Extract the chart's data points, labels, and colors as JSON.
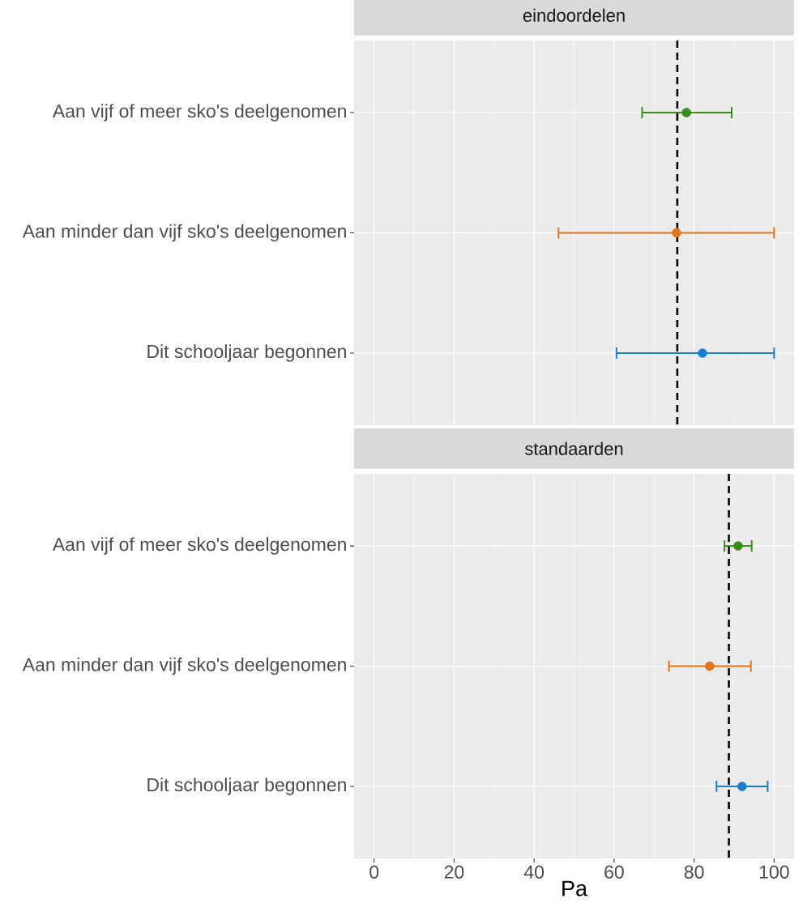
{
  "chart_data": [
    {
      "type": "scatter",
      "title": "eindoordelen",
      "orientation": "horizontal",
      "categories": [
        "Aan vijf of meer sko's deelgenomen",
        "Aan minder dan vijf sko's deelgenomen",
        "Dit schooljaar begonnen"
      ],
      "values": [
        78.1,
        75.6,
        82.1
      ],
      "errors": [
        [
          67.0,
          89.4
        ],
        [
          46.1,
          100
        ],
        [
          60.6,
          100
        ]
      ],
      "colors": [
        "#3a8c1e",
        "#e5751a",
        "#1a7fcf"
      ],
      "xlim": [
        -5,
        105
      ],
      "xticks": [
        0,
        20,
        40,
        60,
        80,
        100
      ],
      "tick_labels": "y",
      "grid": true,
      "marker": "circle",
      "ref_lines": [
        {
          "axis": "x",
          "value": 75.8,
          "color": "#000000",
          "line_style": "dashed"
        }
      ]
    },
    {
      "type": "scatter",
      "title": "standaarden",
      "orientation": "horizontal",
      "xlabel": "Pa",
      "categories": [
        "Aan vijf of meer sko's deelgenomen",
        "Aan minder dan vijf sko's deelgenomen",
        "Dit schooljaar begonnen"
      ],
      "values": [
        91.0,
        83.9,
        92.0
      ],
      "errors": [
        [
          87.6,
          94.4
        ],
        [
          73.7,
          94.2
        ],
        [
          85.6,
          98.4
        ]
      ],
      "colors": [
        "#3a8c1e",
        "#e5751a",
        "#1a7fcf"
      ],
      "xlim": [
        -5,
        105
      ],
      "xticks": [
        0,
        20,
        40,
        60,
        80,
        100
      ],
      "grid": true,
      "marker": "circle",
      "ref_lines": [
        {
          "axis": "x",
          "value": 88.7,
          "color": "#000000",
          "line_style": "dashed"
        }
      ]
    }
  ]
}
